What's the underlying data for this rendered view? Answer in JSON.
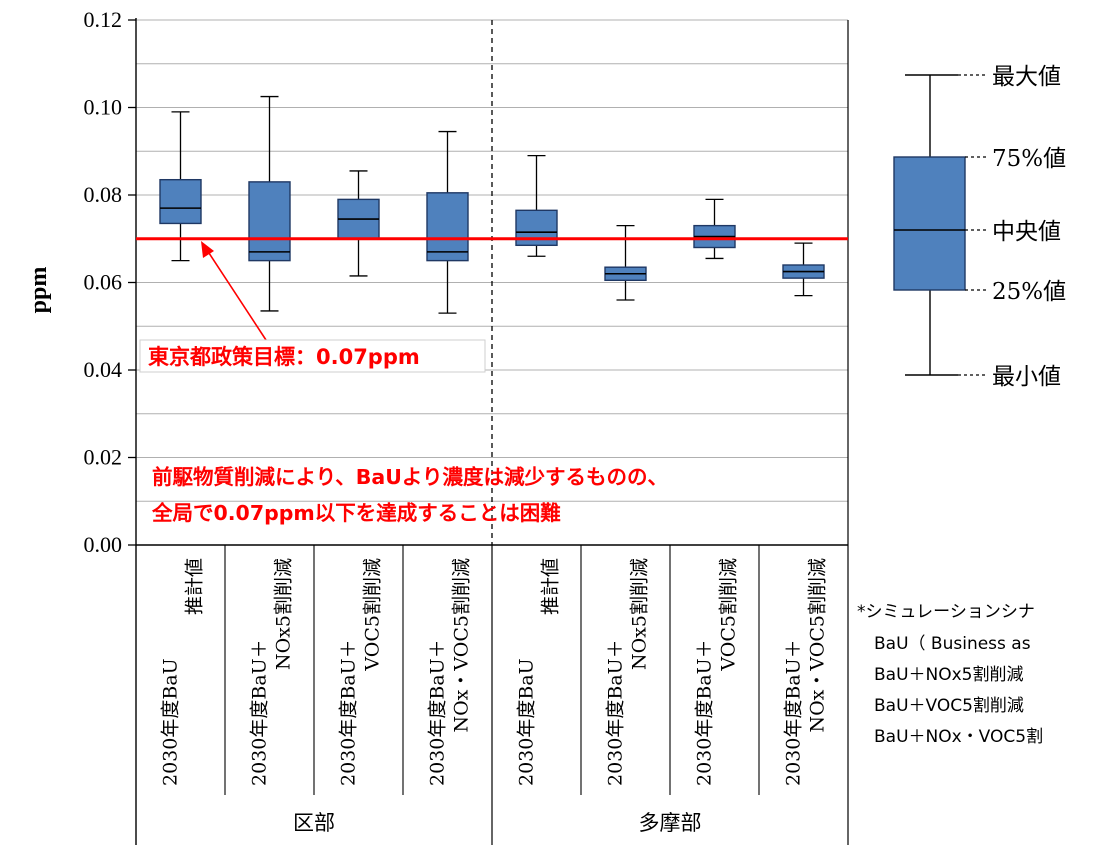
{
  "chart_data": {
    "type": "box",
    "ylabel": "ppm",
    "ylim": [
      0,
      0.12
    ],
    "yticks": [
      "0.00",
      "0.02",
      "0.04",
      "0.06",
      "0.08",
      "0.10",
      "0.12"
    ],
    "ytick_values": [
      0,
      0.02,
      0.04,
      0.06,
      0.08,
      0.1,
      0.12
    ],
    "grid": true,
    "categories": [
      {
        "line1": "2030年度BaU",
        "line2": "推計値"
      },
      {
        "line1": "2030年度BaU＋",
        "line2": "NOx5割削減"
      },
      {
        "line1": "2030年度BaU＋",
        "line2": "VOC5割削減"
      },
      {
        "line1": "2030年度BaU＋",
        "line2": "NOx・VOC5割削減"
      },
      {
        "line1": "2030年度BaU",
        "line2": "推計値"
      },
      {
        "line1": "2030年度BaU＋",
        "line2": "NOx5割削減"
      },
      {
        "line1": "2030年度BaU＋",
        "line2": "VOC5割削減"
      },
      {
        "line1": "2030年度BaU＋",
        "line2": "NOx・VOC5割削減"
      }
    ],
    "groups": [
      {
        "label": "区部",
        "start": 0,
        "end": 3
      },
      {
        "label": "多摩部",
        "start": 4,
        "end": 7
      }
    ],
    "boxes": [
      {
        "min": 0.065,
        "q1": 0.0735,
        "median": 0.077,
        "q3": 0.0835,
        "max": 0.099
      },
      {
        "min": 0.0535,
        "q1": 0.065,
        "median": 0.067,
        "q3": 0.083,
        "max": 0.1025
      },
      {
        "min": 0.0615,
        "q1": 0.07,
        "median": 0.0745,
        "q3": 0.079,
        "max": 0.0855
      },
      {
        "min": 0.053,
        "q1": 0.065,
        "median": 0.067,
        "q3": 0.0805,
        "max": 0.0945
      },
      {
        "min": 0.066,
        "q1": 0.0685,
        "median": 0.0715,
        "q3": 0.0765,
        "max": 0.089
      },
      {
        "min": 0.056,
        "q1": 0.0605,
        "median": 0.062,
        "q3": 0.0635,
        "max": 0.073
      },
      {
        "min": 0.0655,
        "q1": 0.068,
        "median": 0.0705,
        "q3": 0.073,
        "max": 0.079
      },
      {
        "min": 0.057,
        "q1": 0.061,
        "median": 0.0625,
        "q3": 0.064,
        "max": 0.069
      }
    ],
    "reference_line": {
      "value": 0.07,
      "color": "#ff0000"
    },
    "box_color": "#4f81bd",
    "box_edge": "#1f3864"
  },
  "annotations": {
    "target_label": "東京都政策目標：0.07ppm",
    "note_line1": "前駆物質削減により、BaUより濃度は減少するものの、",
    "note_line2": "全局で0.07ppm以下を達成することは困難"
  },
  "legend": {
    "max": "最大値",
    "q3": "75%値",
    "median": "中央値",
    "q1": "25%値",
    "min": "最小値"
  },
  "sim_note": {
    "title": "*シミュレーションシナ",
    "lines": [
      "BaU（ Business as",
      "BaU＋NOx5割削減",
      "BaU＋VOC5割削減",
      "BaU＋NOx・VOC5割"
    ]
  }
}
